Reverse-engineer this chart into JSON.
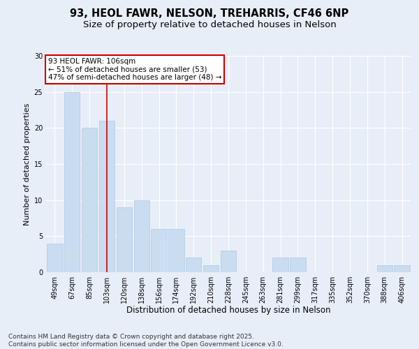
{
  "title1": "93, HEOL FAWR, NELSON, TREHARRIS, CF46 6NP",
  "title2": "Size of property relative to detached houses in Nelson",
  "xlabel": "Distribution of detached houses by size in Nelson",
  "ylabel": "Number of detached properties",
  "categories": [
    "49sqm",
    "67sqm",
    "85sqm",
    "103sqm",
    "120sqm",
    "138sqm",
    "156sqm",
    "174sqm",
    "192sqm",
    "210sqm",
    "228sqm",
    "245sqm",
    "263sqm",
    "281sqm",
    "299sqm",
    "317sqm",
    "335sqm",
    "352sqm",
    "370sqm",
    "388sqm",
    "406sqm"
  ],
  "values": [
    4,
    25,
    20,
    21,
    9,
    10,
    6,
    6,
    2,
    1,
    3,
    0,
    0,
    2,
    2,
    0,
    0,
    0,
    0,
    1,
    1
  ],
  "bar_color": "#c9dcf0",
  "bar_edge_color": "#b0c8e4",
  "vline_x": 3,
  "vline_color": "#cc0000",
  "annotation_text": "93 HEOL FAWR: 106sqm\n← 51% of detached houses are smaller (53)\n47% of semi-detached houses are larger (48) →",
  "annotation_box_facecolor": "#ffffff",
  "annotation_box_edgecolor": "#cc0000",
  "ylim": [
    0,
    30
  ],
  "yticks": [
    0,
    5,
    10,
    15,
    20,
    25,
    30
  ],
  "background_color": "#e8eef8",
  "grid_color": "#ffffff",
  "footer": "Contains HM Land Registry data © Crown copyright and database right 2025.\nContains public sector information licensed under the Open Government Licence v3.0.",
  "title1_fontsize": 10.5,
  "title2_fontsize": 9.5,
  "xlabel_fontsize": 8.5,
  "ylabel_fontsize": 8,
  "tick_fontsize": 7,
  "annotation_fontsize": 7.5,
  "footer_fontsize": 6.5
}
